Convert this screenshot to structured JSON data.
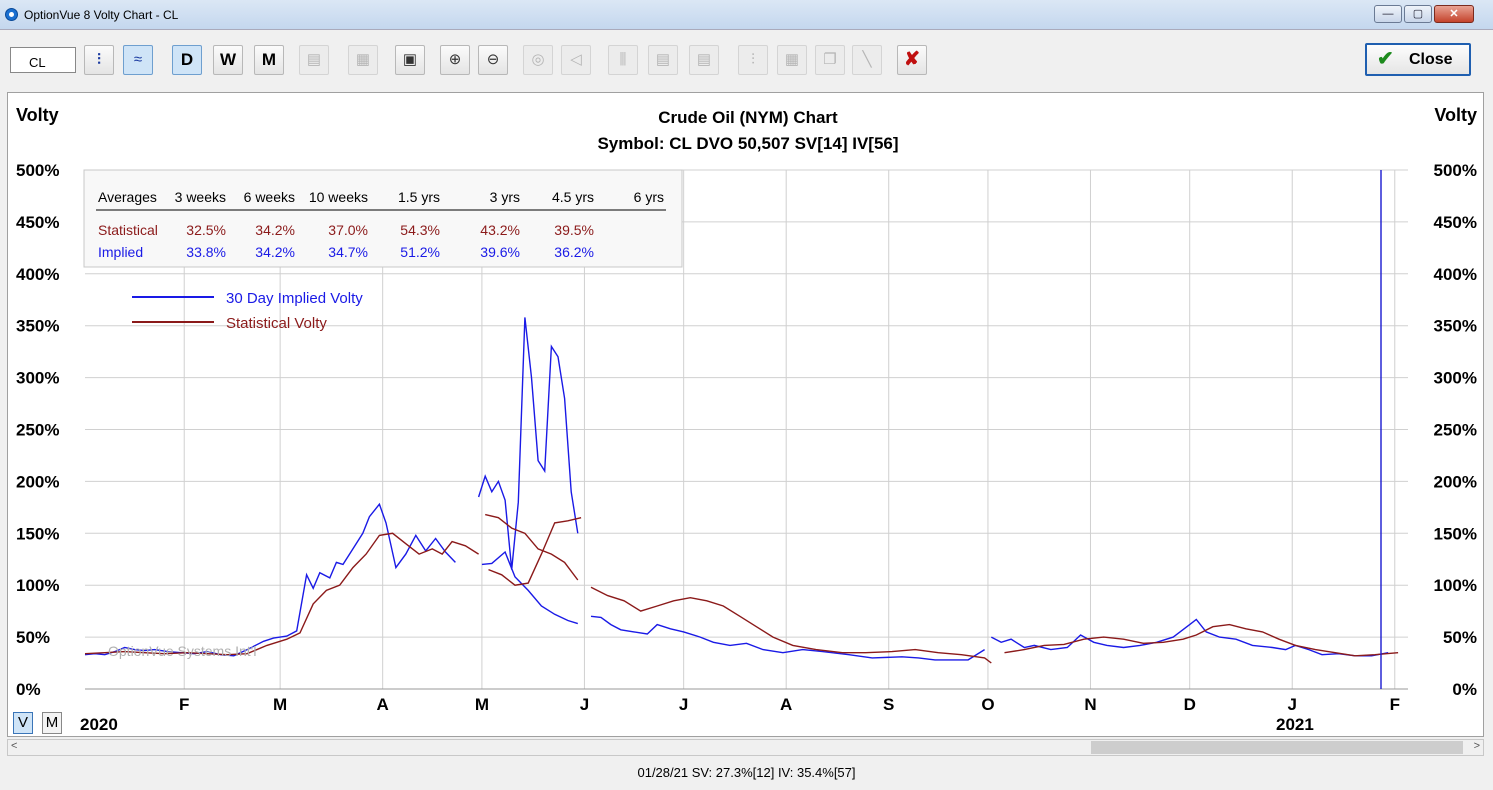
{
  "window": {
    "title": "OptionVue 8 Volty Chart - CL"
  },
  "toolbar": {
    "symbol_value": "CL",
    "btn_day": "D",
    "btn_week": "W",
    "btn_month": "M",
    "close_label": "Close"
  },
  "chart": {
    "title": "Crude Oil (NYM) Chart",
    "subtitle": "Symbol: CL  DVO 50,507  SV[14]  IV[56]",
    "left_axis_title": "Volty",
    "right_axis_title": "Volty",
    "watermark": "OptionVue Systems Int'l",
    "year_left": "2020",
    "year_right": "2021",
    "view_v": "V",
    "view_m": "M"
  },
  "averages": {
    "header": [
      "Averages",
      "3 weeks",
      "6 weeks",
      "10 weeks",
      "1.5 yrs",
      "3 yrs",
      "4.5 yrs",
      "6 yrs"
    ],
    "statistical": [
      "Statistical",
      "32.5%",
      "34.2%",
      "37.0%",
      "54.3%",
      "43.2%",
      "39.5%",
      ""
    ],
    "implied": [
      "Implied",
      "33.8%",
      "34.2%",
      "34.7%",
      "51.2%",
      "39.6%",
      "36.2%",
      ""
    ]
  },
  "status": {
    "text": "01/28/21   SV: 27.3%[12]   IV: 35.4%[57]"
  },
  "chart_data": {
    "type": "line",
    "title": "Crude Oil (NYM) Chart",
    "ylabel": "Volty",
    "ylim": [
      0,
      500
    ],
    "y_ticks": [
      "0%",
      "50%",
      "100%",
      "150%",
      "200%",
      "250%",
      "300%",
      "350%",
      "400%",
      "450%",
      "500%"
    ],
    "x_ticks": [
      "F",
      "M",
      "A",
      "M",
      "J",
      "J",
      "A",
      "S",
      "O",
      "N",
      "D",
      "J",
      "F"
    ],
    "x_tick_dates": [
      "2020-02-01",
      "2020-03-01",
      "2020-04-01",
      "2020-05-01",
      "2020-06-01",
      "2020-07-01",
      "2020-08-01",
      "2020-09-01",
      "2020-10-01",
      "2020-11-01",
      "2020-12-01",
      "2021-01-01",
      "2021-02-01"
    ],
    "xlim": [
      "2020-01-02",
      "2021-02-05"
    ],
    "cursor_date": "2021-01-28",
    "grid": true,
    "legend_position": "top-left",
    "series": [
      {
        "name": "30 Day Implied Volty",
        "color": "#1a1ae6",
        "points": [
          [
            "2020-01-02",
            33
          ],
          [
            "2020-01-05",
            34
          ],
          [
            "2020-01-08",
            33
          ],
          [
            "2020-01-11",
            36
          ],
          [
            "2020-01-14",
            40
          ],
          [
            "2020-01-17",
            38
          ],
          [
            "2020-01-20",
            37
          ],
          [
            "2020-01-23",
            38
          ],
          [
            "2020-01-27",
            36
          ],
          [
            "2020-01-31",
            35
          ],
          [
            "2020-02-04",
            34
          ],
          [
            "2020-02-08",
            36
          ],
          [
            "2020-02-12",
            33
          ],
          [
            "2020-02-16",
            32
          ],
          [
            "2020-02-20",
            38
          ],
          [
            "2020-02-25",
            46
          ],
          [
            "2020-02-28",
            49
          ],
          [
            "2020-03-03",
            51
          ],
          [
            "2020-03-06",
            56
          ],
          [
            "2020-03-09",
            110
          ],
          [
            "2020-03-11",
            97
          ],
          [
            "2020-03-13",
            112
          ],
          [
            "2020-03-16",
            107
          ],
          [
            "2020-03-18",
            122
          ],
          [
            "2020-03-20",
            120
          ],
          [
            "2020-03-23",
            135
          ],
          [
            "2020-03-26",
            150
          ],
          [
            "2020-03-28",
            166
          ],
          [
            "2020-03-31",
            178
          ],
          [
            "2020-04-02",
            160
          ],
          [
            "2020-04-05",
            117
          ],
          [
            "2020-04-08",
            130
          ],
          [
            "2020-04-11",
            148
          ],
          [
            "2020-04-14",
            133
          ],
          [
            "2020-04-17",
            145
          ],
          [
            "2020-04-20",
            132
          ],
          [
            "2020-04-23",
            122
          ],
          null,
          [
            "2020-04-30",
            185
          ],
          [
            "2020-05-02",
            205
          ],
          [
            "2020-05-04",
            190
          ],
          [
            "2020-05-06",
            200
          ],
          [
            "2020-05-08",
            182
          ],
          [
            "2020-05-10",
            115
          ],
          [
            "2020-05-12",
            180
          ],
          [
            "2020-05-14",
            358
          ],
          [
            "2020-05-16",
            300
          ],
          [
            "2020-05-18",
            220
          ],
          [
            "2020-05-20",
            210
          ],
          [
            "2020-05-22",
            330
          ],
          [
            "2020-05-24",
            320
          ],
          [
            "2020-05-26",
            280
          ],
          [
            "2020-05-28",
            190
          ],
          [
            "2020-05-30",
            150
          ],
          null,
          [
            "2020-05-01",
            120
          ],
          [
            "2020-05-04",
            121
          ],
          [
            "2020-05-08",
            132
          ],
          [
            "2020-05-11",
            108
          ],
          [
            "2020-05-15",
            95
          ],
          [
            "2020-05-19",
            80
          ],
          [
            "2020-05-23",
            72
          ],
          [
            "2020-05-27",
            66
          ],
          [
            "2020-05-30",
            63
          ],
          null,
          [
            "2020-06-03",
            70
          ],
          [
            "2020-06-06",
            69
          ],
          [
            "2020-06-09",
            62
          ],
          [
            "2020-06-12",
            57
          ],
          [
            "2020-06-16",
            55
          ],
          [
            "2020-06-20",
            53
          ],
          [
            "2020-06-23",
            62
          ],
          [
            "2020-06-27",
            58
          ],
          [
            "2020-07-01",
            55
          ],
          [
            "2020-07-06",
            50
          ],
          [
            "2020-07-10",
            45
          ],
          [
            "2020-07-15",
            42
          ],
          [
            "2020-07-20",
            44
          ],
          [
            "2020-07-25",
            38
          ],
          [
            "2020-07-31",
            35
          ],
          [
            "2020-08-06",
            38
          ],
          [
            "2020-08-12",
            36
          ],
          [
            "2020-08-20",
            33
          ],
          [
            "2020-08-27",
            30
          ],
          [
            "2020-09-05",
            31
          ],
          [
            "2020-09-10",
            30
          ],
          [
            "2020-09-15",
            28
          ],
          [
            "2020-09-20",
            28
          ],
          [
            "2020-09-25",
            28
          ],
          [
            "2020-09-30",
            38
          ],
          null,
          [
            "2020-10-02",
            50
          ],
          [
            "2020-10-05",
            45
          ],
          [
            "2020-10-08",
            48
          ],
          [
            "2020-10-12",
            40
          ],
          [
            "2020-10-15",
            42
          ],
          [
            "2020-10-20",
            38
          ],
          [
            "2020-10-25",
            40
          ],
          [
            "2020-10-29",
            52
          ],
          [
            "2020-11-02",
            45
          ],
          [
            "2020-11-06",
            42
          ],
          [
            "2020-11-11",
            40
          ],
          [
            "2020-11-16",
            42
          ],
          [
            "2020-11-21",
            45
          ],
          [
            "2020-11-26",
            50
          ],
          [
            "2020-12-01",
            62
          ],
          [
            "2020-12-03",
            67
          ],
          [
            "2020-12-06",
            55
          ],
          [
            "2020-12-10",
            50
          ],
          [
            "2020-12-15",
            48
          ],
          [
            "2020-12-20",
            42
          ],
          [
            "2020-12-26",
            40
          ],
          [
            "2020-12-30",
            38
          ],
          [
            "2021-01-02",
            42
          ],
          [
            "2021-01-06",
            38
          ],
          [
            "2021-01-10",
            33
          ],
          [
            "2021-01-15",
            34
          ],
          [
            "2021-01-20",
            32
          ],
          [
            "2021-01-25",
            32
          ],
          [
            "2021-01-30",
            35
          ],
          [
            "2021-02-04",
            37
          ],
          [
            "2021-02-10",
            34
          ],
          [
            "2021-02-16",
            33
          ],
          [
            "2021-02-22",
            35
          ],
          [
            "2021-02-28",
            34
          ],
          [
            "2021-03-03",
            36
          ],
          [
            "2021-03-05",
            33
          ]
        ]
      },
      {
        "name": "Statistical Volty",
        "color": "#8b1a1a",
        "points": [
          [
            "2020-01-02",
            34
          ],
          [
            "2020-01-08",
            35
          ],
          [
            "2020-01-14",
            36
          ],
          [
            "2020-01-20",
            35
          ],
          [
            "2020-01-26",
            34
          ],
          [
            "2020-02-02",
            35
          ],
          [
            "2020-02-08",
            34
          ],
          [
            "2020-02-14",
            33
          ],
          [
            "2020-02-20",
            34
          ],
          [
            "2020-02-26",
            42
          ],
          [
            "2020-03-03",
            48
          ],
          [
            "2020-03-07",
            54
          ],
          [
            "2020-03-11",
            82
          ],
          [
            "2020-03-15",
            95
          ],
          [
            "2020-03-19",
            100
          ],
          [
            "2020-03-23",
            117
          ],
          [
            "2020-03-27",
            130
          ],
          [
            "2020-03-31",
            148
          ],
          [
            "2020-04-04",
            150
          ],
          [
            "2020-04-08",
            140
          ],
          [
            "2020-04-12",
            130
          ],
          [
            "2020-04-16",
            135
          ],
          [
            "2020-04-19",
            130
          ],
          [
            "2020-04-22",
            142
          ],
          [
            "2020-04-26",
            138
          ],
          [
            "2020-04-30",
            130
          ],
          null,
          [
            "2020-05-03",
            115
          ],
          [
            "2020-05-07",
            110
          ],
          [
            "2020-05-11",
            100
          ],
          [
            "2020-05-15",
            102
          ],
          [
            "2020-05-19",
            130
          ],
          [
            "2020-05-23",
            160
          ],
          [
            "2020-05-27",
            162
          ],
          [
            "2020-05-31",
            165
          ],
          null,
          [
            "2020-05-02",
            168
          ],
          [
            "2020-05-06",
            165
          ],
          [
            "2020-05-10",
            155
          ],
          [
            "2020-05-14",
            150
          ],
          [
            "2020-05-18",
            135
          ],
          [
            "2020-05-22",
            130
          ],
          [
            "2020-05-26",
            122
          ],
          [
            "2020-05-30",
            105
          ],
          null,
          [
            "2020-06-03",
            98
          ],
          [
            "2020-06-08",
            90
          ],
          [
            "2020-06-13",
            85
          ],
          [
            "2020-06-18",
            75
          ],
          [
            "2020-06-23",
            80
          ],
          [
            "2020-06-28",
            85
          ],
          [
            "2020-07-03",
            88
          ],
          [
            "2020-07-08",
            85
          ],
          [
            "2020-07-13",
            80
          ],
          [
            "2020-07-18",
            70
          ],
          [
            "2020-07-23",
            60
          ],
          [
            "2020-07-28",
            50
          ],
          [
            "2020-08-03",
            42
          ],
          [
            "2020-08-10",
            38
          ],
          [
            "2020-08-18",
            35
          ],
          [
            "2020-08-25",
            35
          ],
          [
            "2020-09-02",
            36
          ],
          [
            "2020-09-09",
            38
          ],
          [
            "2020-09-16",
            35
          ],
          [
            "2020-09-23",
            33
          ],
          [
            "2020-09-30",
            30
          ],
          [
            "2020-10-02",
            25
          ],
          null,
          [
            "2020-10-06",
            35
          ],
          [
            "2020-10-12",
            38
          ],
          [
            "2020-10-18",
            42
          ],
          [
            "2020-10-24",
            43
          ],
          [
            "2020-10-30",
            48
          ],
          [
            "2020-11-05",
            50
          ],
          [
            "2020-11-11",
            48
          ],
          [
            "2020-11-17",
            44
          ],
          [
            "2020-11-23",
            45
          ],
          [
            "2020-11-29",
            48
          ],
          [
            "2020-12-03",
            52
          ],
          [
            "2020-12-08",
            60
          ],
          [
            "2020-12-13",
            62
          ],
          [
            "2020-12-18",
            58
          ],
          [
            "2020-12-23",
            55
          ],
          [
            "2020-12-28",
            48
          ],
          [
            "2021-01-02",
            42
          ],
          [
            "2021-01-08",
            38
          ],
          [
            "2021-01-14",
            35
          ],
          [
            "2021-01-20",
            32
          ],
          [
            "2021-01-26",
            33
          ],
          [
            "2021-02-02",
            35
          ],
          [
            "2021-02-10",
            37
          ],
          [
            "2021-02-18",
            33
          ],
          [
            "2021-02-26",
            32
          ],
          [
            "2021-03-02",
            28
          ],
          [
            "2021-03-05",
            27
          ]
        ]
      }
    ]
  }
}
